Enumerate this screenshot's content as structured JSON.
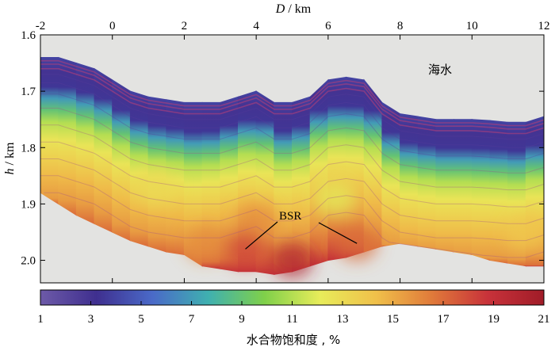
{
  "chart_data": {
    "type": "heatmap",
    "title": "",
    "xlabel": {
      "var": "D",
      "unit": " / km"
    },
    "ylabel": {
      "var": "h",
      "unit": " / km"
    },
    "xlim": [
      -2,
      12
    ],
    "ylim": [
      1.6,
      2.04
    ],
    "y_inverted": true,
    "x_ticks": [
      "-2",
      "0",
      "2",
      "4",
      "6",
      "8",
      "10",
      "12"
    ],
    "y_ticks": [
      "1.6",
      "1.7",
      "1.8",
      "1.9",
      "2.0"
    ],
    "annotations": {
      "water": "海水",
      "bsr": "BSR"
    },
    "colorbar": {
      "ticks": [
        "1",
        "3",
        "5",
        "7",
        "9",
        "11",
        "13",
        "15",
        "17",
        "19",
        "21"
      ],
      "label": "水合物饱和度 , %",
      "range": [
        1,
        21
      ],
      "colors": [
        "#6d5aa8",
        "#3f2f8f",
        "#4a6ac8",
        "#3fb0b0",
        "#7fd04a",
        "#e8ec5a",
        "#f0c04a",
        "#e07a3a",
        "#c8323a",
        "#a01c28"
      ]
    },
    "seafloor_depth": {
      "x": [
        -2,
        -1.5,
        -1,
        -0.5,
        0,
        0.5,
        1,
        1.5,
        2,
        2.5,
        3,
        3.5,
        4,
        4.5,
        5,
        5.5,
        6,
        6.5,
        7,
        7.5,
        8,
        8.5,
        9,
        9.5,
        10,
        10.5,
        11,
        11.5,
        12
      ],
      "y": [
        1.64,
        1.64,
        1.65,
        1.66,
        1.68,
        1.7,
        1.71,
        1.715,
        1.72,
        1.72,
        1.72,
        1.71,
        1.7,
        1.72,
        1.72,
        1.71,
        1.68,
        1.675,
        1.68,
        1.72,
        1.74,
        1.745,
        1.75,
        1.75,
        1.75,
        1.752,
        1.755,
        1.755,
        1.745
      ]
    },
    "bottom_depth": {
      "x": [
        -2,
        -1.5,
        -1,
        -0.5,
        0,
        0.5,
        1,
        1.5,
        2,
        2.5,
        3,
        3.5,
        4,
        4.5,
        5,
        5.5,
        6,
        6.5,
        7,
        7.5,
        8,
        8.5,
        9,
        9.5,
        10,
        10.5,
        11,
        11.5,
        12
      ],
      "y": [
        1.88,
        1.9,
        1.92,
        1.935,
        1.95,
        1.965,
        1.975,
        1.985,
        1.99,
        2.01,
        2.015,
        2.02,
        2.02,
        2.025,
        2.02,
        2.01,
        2.0,
        1.995,
        1.985,
        1.975,
        1.97,
        1.975,
        1.98,
        1.985,
        1.99,
        2.0,
        2.005,
        2.01,
        2.01
      ]
    },
    "saturation_profile": {
      "depth_below_seafloor_m": [
        0,
        25,
        50,
        70,
        90,
        110,
        140,
        170,
        200,
        240,
        280,
        320
      ],
      "value": [
        4,
        3,
        3.5,
        7,
        9,
        11,
        12.5,
        13.5,
        14.5,
        15.5,
        17,
        19
      ]
    },
    "anomalies": [
      {
        "x": 4.0,
        "y": 1.93,
        "value": 16
      },
      {
        "x": 6.2,
        "y": 1.89,
        "value": 12
      },
      {
        "x": 3.7,
        "y": 1.98,
        "value": 18
      },
      {
        "x": 6.8,
        "y": 1.97,
        "value": 17
      },
      {
        "x": 2.6,
        "y": 1.97,
        "value": 16
      },
      {
        "x": 11.5,
        "y": 1.95,
        "value": 14
      },
      {
        "x": 5.0,
        "y": 2.0,
        "value": 20
      },
      {
        "x": 1.2,
        "y": 1.87,
        "value": 13
      }
    ],
    "bsr_targets": [
      {
        "x": 3.7,
        "y": 1.98
      },
      {
        "x": 6.8,
        "y": 1.97
      }
    ]
  }
}
